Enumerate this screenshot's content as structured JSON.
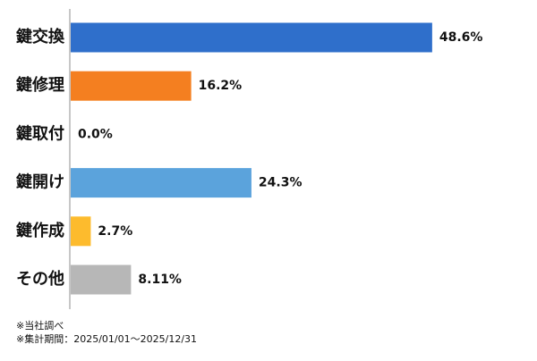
{
  "chart_data": {
    "type": "bar",
    "orientation": "horizontal",
    "categories": [
      "鍵交換",
      "鍵修理",
      "鍵取付",
      "鍵開け",
      "鍵作成",
      "その他"
    ],
    "values": [
      48.6,
      16.2,
      0.0,
      24.3,
      2.7,
      8.11
    ],
    "value_labels": [
      "48.6%",
      "16.2%",
      "0.0%",
      "24.3%",
      "2.7%",
      "8.11%"
    ],
    "colors": [
      "#2f6fcb",
      "#f47f20",
      "#9b9b9b",
      "#5ba3dc",
      "#fdbb2d",
      "#b7b7b7"
    ],
    "title": "",
    "xlabel": "",
    "ylabel": "",
    "xlim": [
      0,
      100
    ],
    "grid": false,
    "legend": "none"
  },
  "footnotes": [
    "※当社調べ",
    "※集計期間：2025/01/01～2025/12/31"
  ]
}
